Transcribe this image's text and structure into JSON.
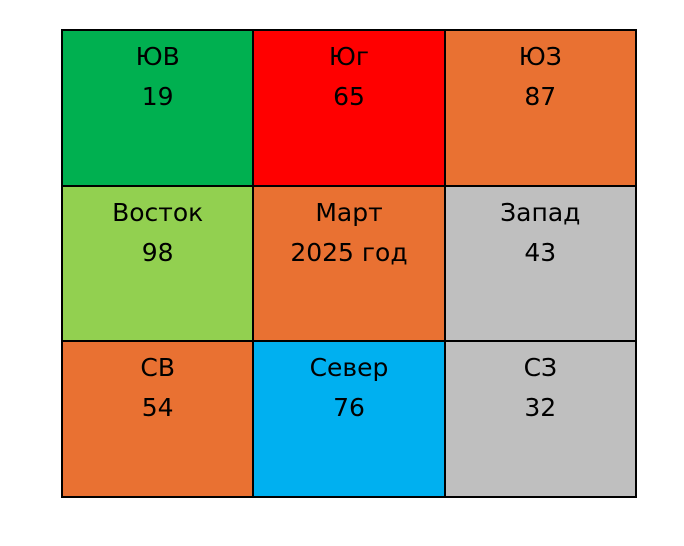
{
  "grid": {
    "columns": 3,
    "cells": [
      {
        "label": "ЮВ",
        "value": 19,
        "color": "#00b050"
      },
      {
        "label": "Юг",
        "value": 65,
        "color": "#ff0000"
      },
      {
        "label": "ЮЗ",
        "value": 87,
        "color": "#e97132"
      },
      {
        "label": "Восток",
        "value": 98,
        "color": "#92d050"
      },
      {
        "label": "Март",
        "value": "2025 год",
        "color": "#e97132"
      },
      {
        "label": "Запад",
        "value": 43,
        "color": "#bfbfbf"
      },
      {
        "label": "СВ",
        "value": 54,
        "color": "#e97132"
      },
      {
        "label": "Север",
        "value": 76,
        "color": "#00b0f0"
      },
      {
        "label": "СЗ",
        "value": 32,
        "color": "#bfbfbf"
      }
    ]
  }
}
